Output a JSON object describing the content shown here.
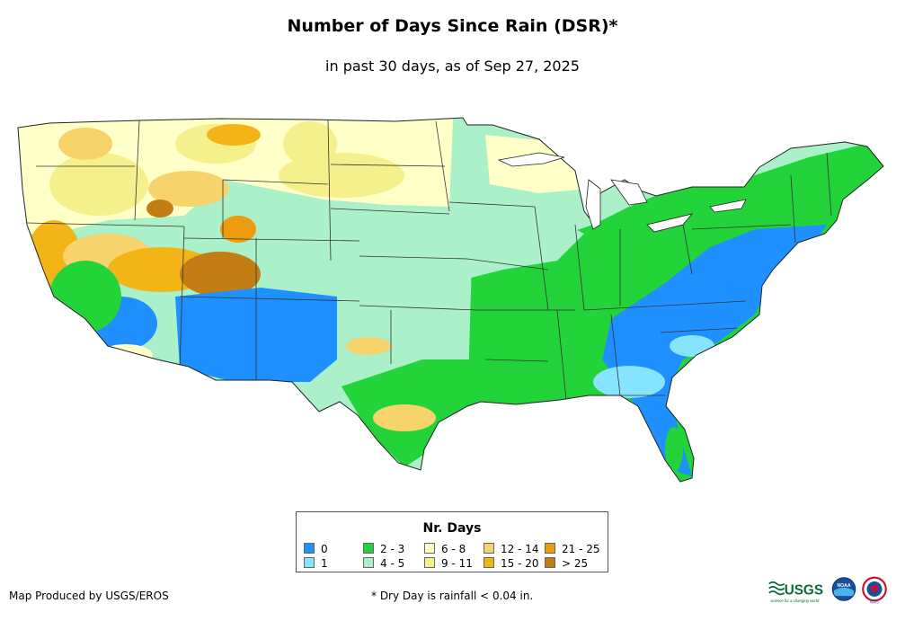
{
  "header": {
    "title": "Number of Days Since Rain (DSR)*",
    "subtitle": "in past 30 days, as of Sep 27, 2025"
  },
  "legend": {
    "title": "Nr. Days",
    "items": [
      {
        "label": "0",
        "color": "#1e90ff"
      },
      {
        "label": "1",
        "color": "#87e4ff"
      },
      {
        "label": "2 - 3",
        "color": "#22d43a"
      },
      {
        "label": "4 - 5",
        "color": "#aaf0c8"
      },
      {
        "label": "6 - 8",
        "color": "#ffffc8"
      },
      {
        "label": "9 - 11",
        "color": "#f6f08c"
      },
      {
        "label": "12 - 14",
        "color": "#f7d46b"
      },
      {
        "label": "15 - 20",
        "color": "#f2b416"
      },
      {
        "label": "21 - 25",
        "color": "#ec9c0c"
      },
      {
        "label": "> 25",
        "color": "#c27e14"
      }
    ]
  },
  "footer": {
    "credit": "Map Produced by USGS/EROS",
    "footnote": "* Dry Day is rainfall < 0.04 in.",
    "logos": [
      {
        "name": "usgs-logo",
        "text": "USGS",
        "tagline": "science for a changing world"
      },
      {
        "name": "noaa-logo",
        "text": "NOAA"
      },
      {
        "name": "nws-logo",
        "text": "NWS"
      }
    ]
  }
}
